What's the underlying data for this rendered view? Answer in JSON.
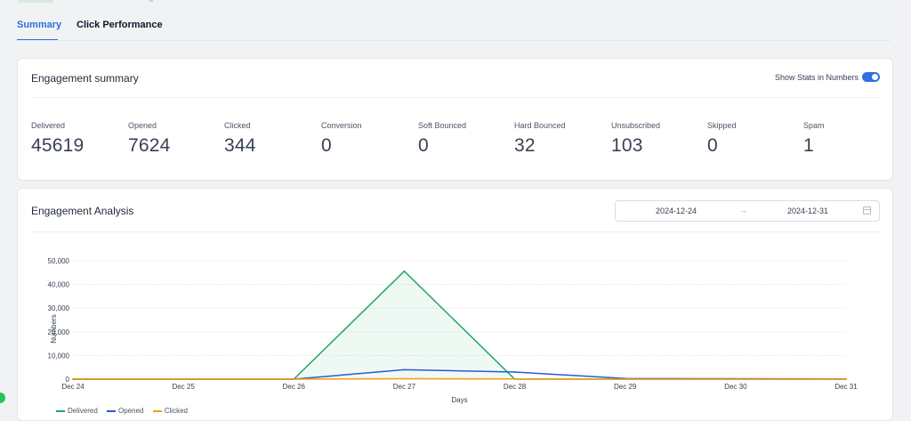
{
  "tabs": [
    {
      "label": "Summary",
      "active": true
    },
    {
      "label": "Click Performance",
      "active": false
    }
  ],
  "engagement_summary": {
    "title": "Engagement summary",
    "toggle_label": "Show Stats in Numbers",
    "toggle_on": true,
    "stats": [
      {
        "label": "Delivered",
        "value": "45619"
      },
      {
        "label": "Opened",
        "value": "7624"
      },
      {
        "label": "Clicked",
        "value": "344"
      },
      {
        "label": "Conversion",
        "value": "0"
      },
      {
        "label": "Soft Bounced",
        "value": "0"
      },
      {
        "label": "Hard Bounced",
        "value": "32"
      },
      {
        "label": "Unsubscribed",
        "value": "103"
      },
      {
        "label": "Skipped",
        "value": "0"
      },
      {
        "label": "Spam",
        "value": "1"
      }
    ]
  },
  "engagement_analysis": {
    "title": "Engagement Analysis",
    "date_start": "2024-12-24",
    "date_arrow": "→",
    "date_end": "2024-12-31"
  },
  "colors": {
    "accent": "#2f6fe0",
    "delivered": "#22a565",
    "opened": "#2b59d6",
    "clicked": "#f59e0b"
  },
  "icons": {
    "date_arrow": "arrow-right-icon",
    "calendar": "calendar-icon"
  },
  "chart_data": {
    "type": "line",
    "categories": [
      "Dec 24",
      "Dec 25",
      "Dec 26",
      "Dec 27",
      "Dec 28",
      "Dec 29",
      "Dec 30",
      "Dec 31"
    ],
    "series": [
      {
        "name": "Delivered",
        "values": [
          0,
          0,
          0,
          45619,
          0,
          0,
          0,
          0
        ],
        "color": "#22a565",
        "fill": true
      },
      {
        "name": "Opened",
        "values": [
          0,
          0,
          0,
          4000,
          3000,
          300,
          200,
          100
        ],
        "color": "#2b59d6",
        "fill": false
      },
      {
        "name": "Clicked",
        "values": [
          0,
          0,
          0,
          200,
          100,
          20,
          10,
          5
        ],
        "color": "#f59e0b",
        "fill": false
      }
    ],
    "yticks": [
      "0",
      "10,000",
      "20,000",
      "30,000",
      "40,000",
      "50,000"
    ],
    "ylim": [
      0,
      50000
    ],
    "xlabel": "Days",
    "ylabel": "Numbers",
    "grid": true,
    "legend_position": "bottom-left"
  }
}
